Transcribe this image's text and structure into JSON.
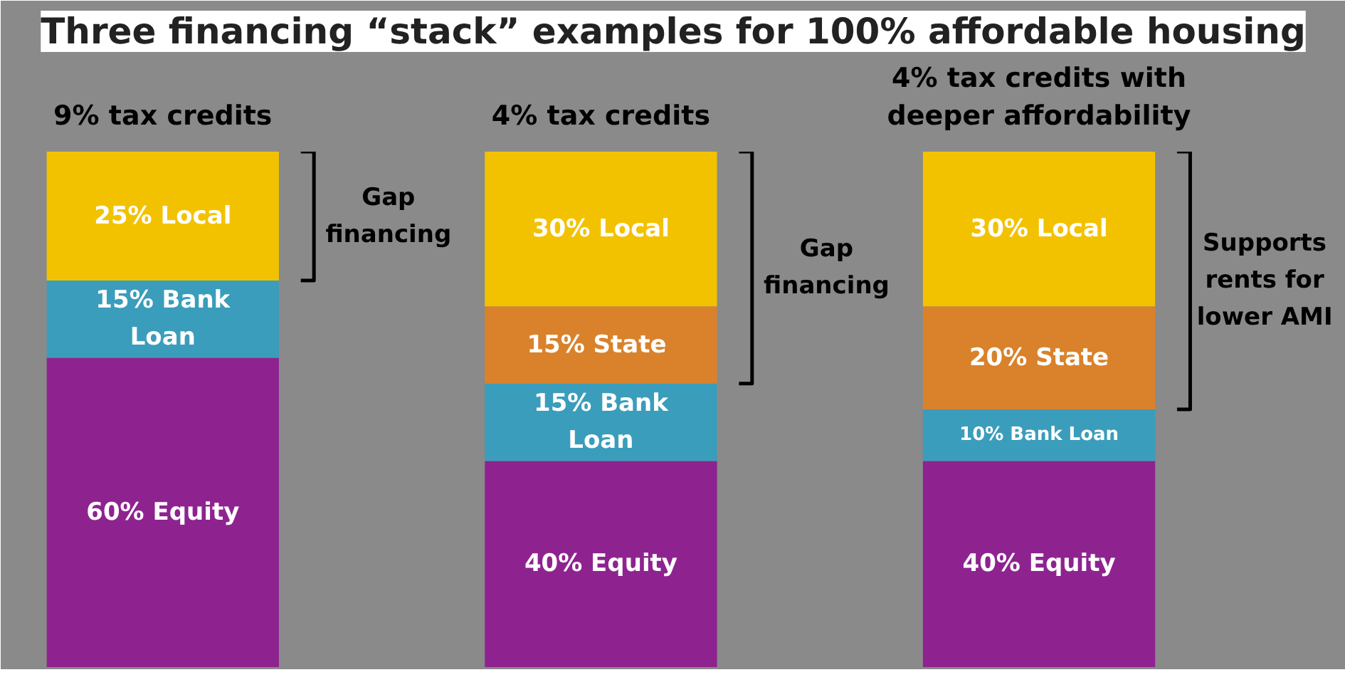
{
  "chart_data": {
    "type": "bar",
    "stacked": true,
    "title": "Three financing “stack” examples for 100% affordable housing",
    "categories": [
      "9% tax credits",
      "4% tax credits",
      "4% tax credits with deeper affordability"
    ],
    "ylim": [
      0,
      100
    ],
    "tick_labels": "x",
    "grid": false,
    "series": [
      {
        "color": "#8e2390",
        "values": [
          60,
          40,
          40
        ],
        "value_labels": [
          "60% Equity",
          "40% Equity",
          "40% Equity"
        ]
      },
      {
        "color": "#3a9dbb",
        "values": [
          15,
          15,
          10
        ],
        "value_labels": [
          "15% Bank Loan",
          "15% Bank Loan",
          "10% Bank Loan"
        ]
      },
      {
        "color": "#d9822b",
        "values": [
          null,
          15,
          20
        ],
        "value_labels": [
          null,
          "15%  State",
          "20% State"
        ]
      },
      {
        "color": "#f2c200",
        "values": [
          25,
          30,
          30
        ],
        "value_labels": [
          "25% Local",
          "30% Local",
          "30% Local"
        ]
      }
    ],
    "annotations": [
      "Gap financing",
      "Gap financing",
      "Supports rents for lower AMI"
    ]
  }
}
